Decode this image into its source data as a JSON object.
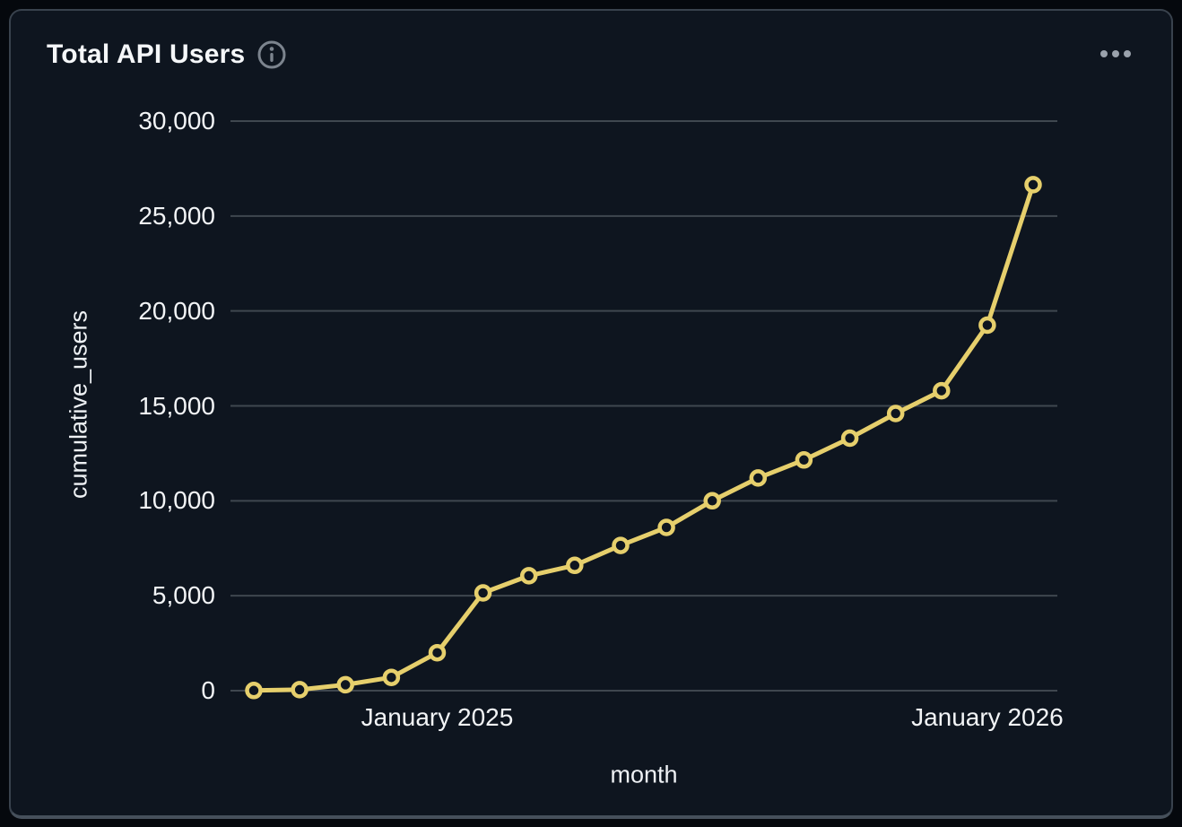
{
  "card": {
    "title": "Total API Users"
  },
  "chart_data": {
    "type": "line",
    "title": "Total API Users",
    "xlabel": "month",
    "ylabel": "cumulative_users",
    "x": [
      "2024-09",
      "2024-10",
      "2024-11",
      "2024-12",
      "2025-01",
      "2025-02",
      "2025-03",
      "2025-04",
      "2025-05",
      "2025-06",
      "2025-07",
      "2025-08",
      "2025-09",
      "2025-10",
      "2025-11",
      "2025-12",
      "2026-01",
      "2026-02"
    ],
    "series": [
      {
        "name": "cumulative_users",
        "values": [
          10,
          50,
          310,
          700,
          2000,
          5150,
          6050,
          6600,
          7650,
          8600,
          10000,
          11200,
          12150,
          13300,
          14600,
          15800,
          19250,
          26650
        ]
      }
    ],
    "ylim": [
      0,
      30000
    ],
    "y_ticks": [
      {
        "value": 0,
        "label": "0"
      },
      {
        "value": 5000,
        "label": "5,000"
      },
      {
        "value": 10000,
        "label": "10,000"
      },
      {
        "value": 15000,
        "label": "15,000"
      },
      {
        "value": 20000,
        "label": "20,000"
      },
      {
        "value": 25000,
        "label": "25,000"
      },
      {
        "value": 30000,
        "label": "30,000"
      }
    ],
    "x_ticks": [
      {
        "index": 4,
        "label": "January 2025"
      },
      {
        "index": 16,
        "label": "January 2026"
      }
    ],
    "grid": "horizontal",
    "legend": "none",
    "colors": {
      "line": "#e6cf6c",
      "marker_fill": "#0e151f",
      "grid": "#3f474f",
      "text": "#f2f4f6",
      "muted": "#848c96",
      "card_bg": "#0e151f",
      "page_bg": "#05080d",
      "border": "#39424d"
    }
  }
}
